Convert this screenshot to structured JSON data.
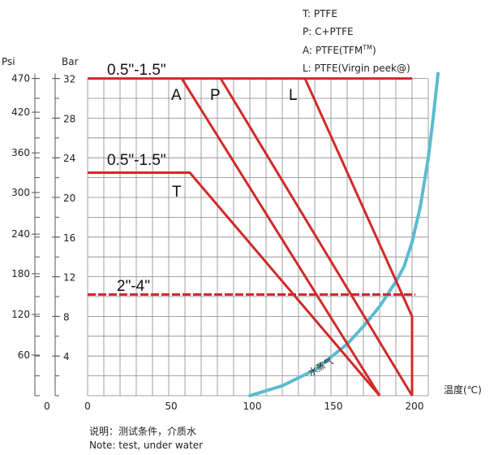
{
  "chart_data": {
    "type": "line",
    "title": "",
    "legend": [
      "T: PTFE",
      "P: C+PTFE",
      "A: PTFE(TFM",
      "L: PTFE(Virgin peek@)"
    ],
    "legend_sup": "TM",
    "legend_close": ")",
    "xlabel": "温度(℃)",
    "ylabel_left": "Psi",
    "ylabel_right": "Bar",
    "xlim": [
      0,
      210
    ],
    "ylim_bar": [
      0,
      32
    ],
    "x_ticks": [
      "0",
      "0",
      "50",
      "100",
      "150",
      "200"
    ],
    "psi_ticks": [
      {
        "label": "470",
        "bar": 32
      },
      {
        "label": "420",
        "bar": 28.6
      },
      {
        "label": "360",
        "bar": 24.5
      },
      {
        "label": "300",
        "bar": 20.5
      },
      {
        "label": "240",
        "bar": 16.3
      },
      {
        "label": "180",
        "bar": 12.3
      },
      {
        "label": "120",
        "bar": 8.2
      },
      {
        "label": "60",
        "bar": 4.1
      }
    ],
    "bar_ticks": [
      "4",
      "8",
      "12",
      "16",
      "20",
      "24",
      "28",
      "32"
    ],
    "series": [
      {
        "name": "A",
        "x": [
          58,
          180
        ],
        "y": [
          32,
          0
        ]
      },
      {
        "name": "P",
        "x": [
          82,
          200
        ],
        "y": [
          32,
          0
        ]
      },
      {
        "name": "L",
        "x": [
          134,
          200,
          200
        ],
        "y": [
          32,
          8,
          0
        ]
      },
      {
        "name": "T",
        "x": [
          0,
          63,
          180
        ],
        "y": [
          22.5,
          22.5,
          0
        ]
      }
    ],
    "horizontal_lines": [
      {
        "x": [
          0,
          200
        ],
        "y": 32
      },
      {
        "x": [
          0,
          202
        ],
        "y": 10.2,
        "dashed": true
      }
    ],
    "steam_curve": {
      "name": "水蒸气",
      "x": [
        100,
        120,
        140,
        160,
        170,
        180,
        190,
        195,
        200,
        205,
        210,
        213,
        216
      ],
      "y": [
        0,
        1.0,
        2.6,
        5.2,
        7.0,
        9.0,
        11.5,
        13.0,
        15.5,
        19,
        24,
        28,
        32.5
      ]
    },
    "annotations": [
      "0.5\"-1.5\"",
      "0.5\"-1.5\"",
      "2\"-4\""
    ],
    "note_cn": "说明：测试条件，介质水",
    "note_en": "Note: test, under water",
    "colors": {
      "red": "#d12a2a",
      "steam": "#5bbccf",
      "grid": "#888888"
    },
    "grid": true
  }
}
